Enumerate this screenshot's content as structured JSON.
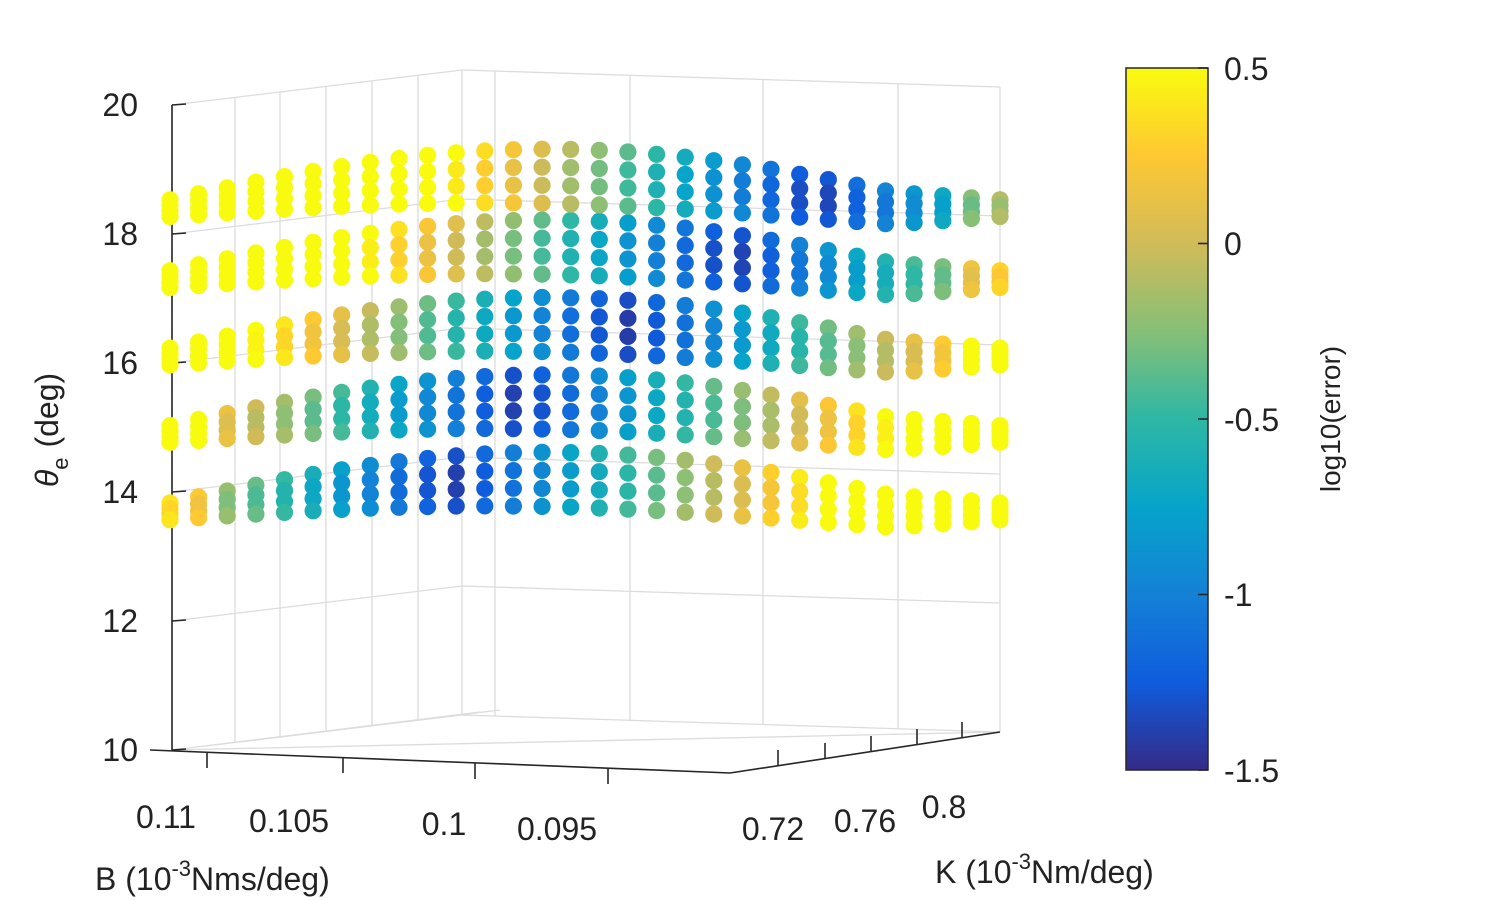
{
  "chart_data": {
    "type": "scatter",
    "title": "",
    "zlabel": {
      "symbol": "θ",
      "subscript": "e",
      "unit": "(deg)"
    },
    "ylabel": {
      "name": "B (10",
      "exponent": "-3",
      "unit": "Nms/deg)"
    },
    "xlabel": {
      "name": "K (10",
      "exponent": "-3",
      "unit": "Nm/deg)"
    },
    "z_ticks": [
      "10",
      "12",
      "14",
      "16",
      "18",
      "20"
    ],
    "z_range": [
      10,
      20
    ],
    "b_ticks": [
      "0.11",
      "0.105",
      "0.1",
      "0.095"
    ],
    "k_ticks": [
      "0.72",
      "0.76",
      "0.8"
    ],
    "colorbar": {
      "label": "log10(error)",
      "range": [
        -1.5,
        0.5
      ],
      "ticks": [
        "0.5",
        "0",
        "-0.5",
        "-1",
        "-1.5"
      ]
    },
    "grid": true,
    "theta_levels": [
      13.7,
      14.9,
      16.1,
      17.3,
      18.4
    ],
    "n_per_level": 120,
    "colors": {
      "axis": "#262626",
      "grid": "#dcdcdc",
      "parula": [
        "#352a87",
        "#0f5cdd",
        "#1481d6",
        "#06a4ca",
        "#2eb7a4",
        "#87bf77",
        "#d1bb59",
        "#fec832",
        "#f9fb0e"
      ]
    }
  }
}
